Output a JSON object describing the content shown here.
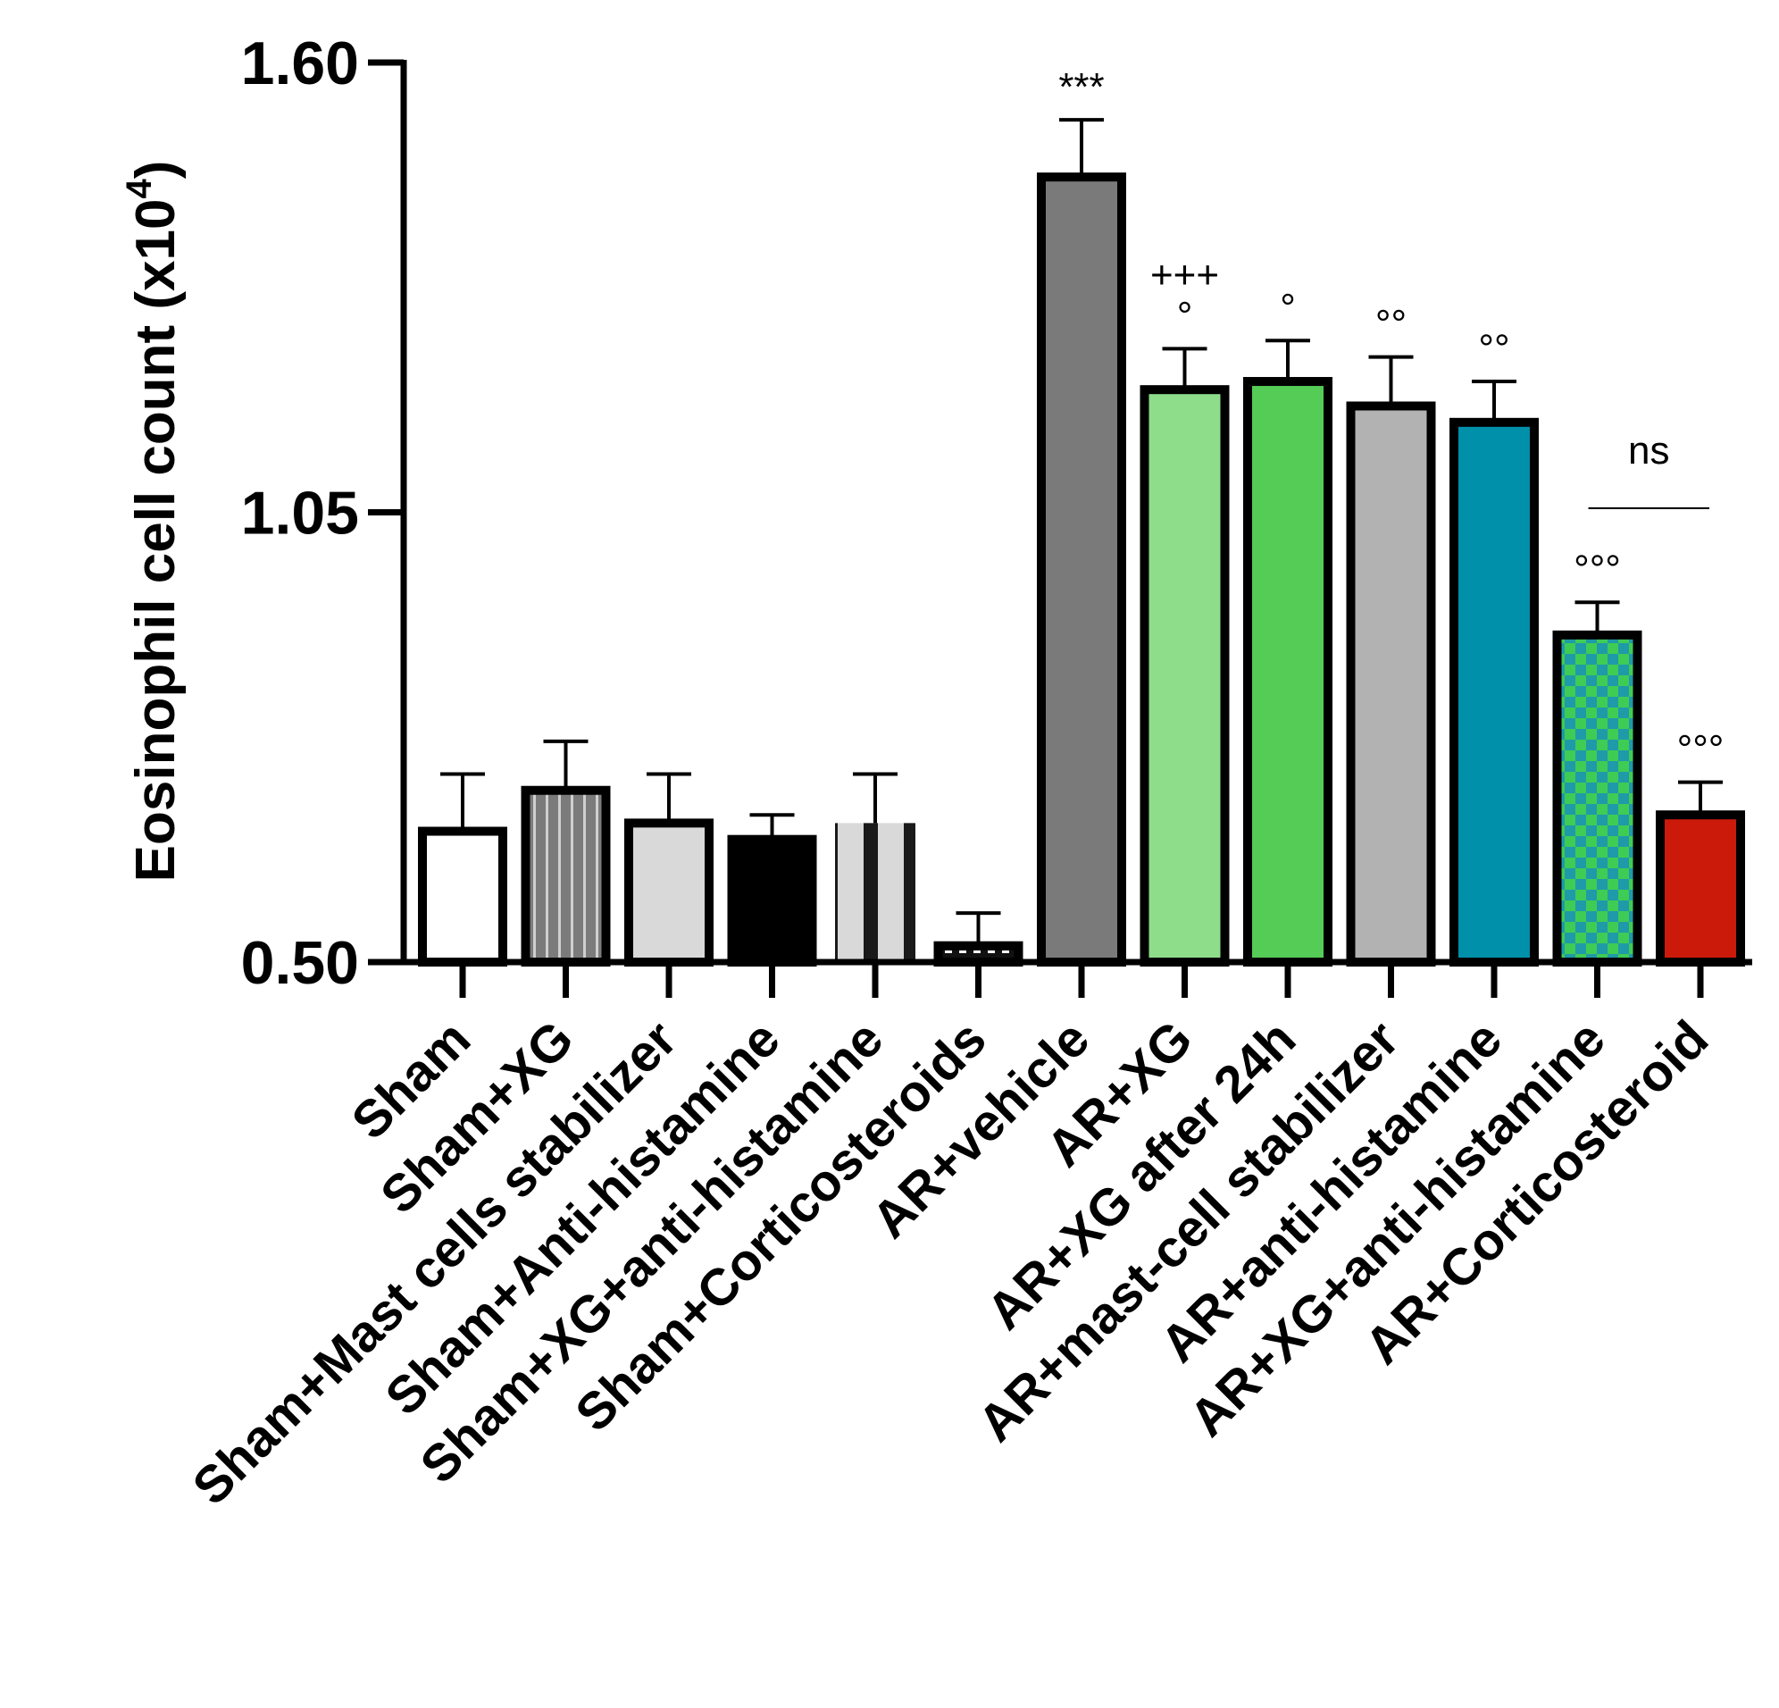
{
  "chart_data": {
    "type": "bar",
    "ylabel": "Eosinophil cell count (x10",
    "ylabel_sup": "4",
    "ylabel_close": ")",
    "ylim": [
      0.5,
      1.6
    ],
    "yticks": [
      "0.50",
      "1.05",
      "1.60"
    ],
    "ytick_values": [
      0.5,
      1.05,
      1.6
    ],
    "grid": false,
    "categories": [
      "Sham",
      "Sham+XG",
      "Sham+Mast cells stabilizer",
      "Sham+Anti-histamine",
      "Sham+XG+anti-histamine",
      "Sham+Corticosteroids",
      "AR+vehicle",
      "AR+XG",
      "AR+XG after 24h",
      "AR+mast-cell stabilizer",
      "AR+anti-histamine",
      "AR+XG+anti-histamine",
      "AR+Corticosteroid"
    ],
    "values": [
      0.66,
      0.71,
      0.67,
      0.65,
      0.67,
      0.52,
      1.46,
      1.2,
      1.21,
      1.18,
      1.16,
      0.9,
      0.68
    ],
    "errors": [
      0.07,
      0.06,
      0.06,
      0.03,
      0.06,
      0.04,
      0.07,
      0.05,
      0.05,
      0.06,
      0.05,
      0.04,
      0.04
    ],
    "styles": [
      {
        "fill": "#ffffff",
        "pattern": "none"
      },
      {
        "fill": "#7b7b7b",
        "pattern": "vstripes-light"
      },
      {
        "fill": "#d9d9d9",
        "pattern": "none"
      },
      {
        "fill": "#000000",
        "pattern": "none"
      },
      {
        "fill": "#d9d9d9",
        "pattern": "dark-bars"
      },
      {
        "fill": "#111111",
        "pattern": "dashes-light"
      },
      {
        "fill": "#7a7a7a",
        "pattern": "none"
      },
      {
        "fill": "#8ddd8a",
        "pattern": "none"
      },
      {
        "fill": "#55cc55",
        "pattern": "none"
      },
      {
        "fill": "#b2b2b2",
        "pattern": "none"
      },
      {
        "fill": "#0090aa",
        "pattern": "none"
      },
      {
        "fill": "#1e9fa0",
        "pattern": "checker"
      },
      {
        "fill": "#cc1a0a",
        "pattern": "none"
      }
    ],
    "annotations": [
      {
        "index": 6,
        "lines": [
          "***"
        ]
      },
      {
        "index": 7,
        "lines": [
          "+++",
          "°"
        ]
      },
      {
        "index": 8,
        "lines": [
          "°"
        ]
      },
      {
        "index": 9,
        "lines": [
          "°°"
        ]
      },
      {
        "index": 10,
        "lines": [
          "°°"
        ]
      },
      {
        "index": 11,
        "lines": [
          "°°°"
        ]
      },
      {
        "index": 12,
        "lines": [
          "°°°"
        ]
      }
    ],
    "comparison": {
      "from_index": 11,
      "to_index": 12,
      "label": "ns"
    }
  }
}
